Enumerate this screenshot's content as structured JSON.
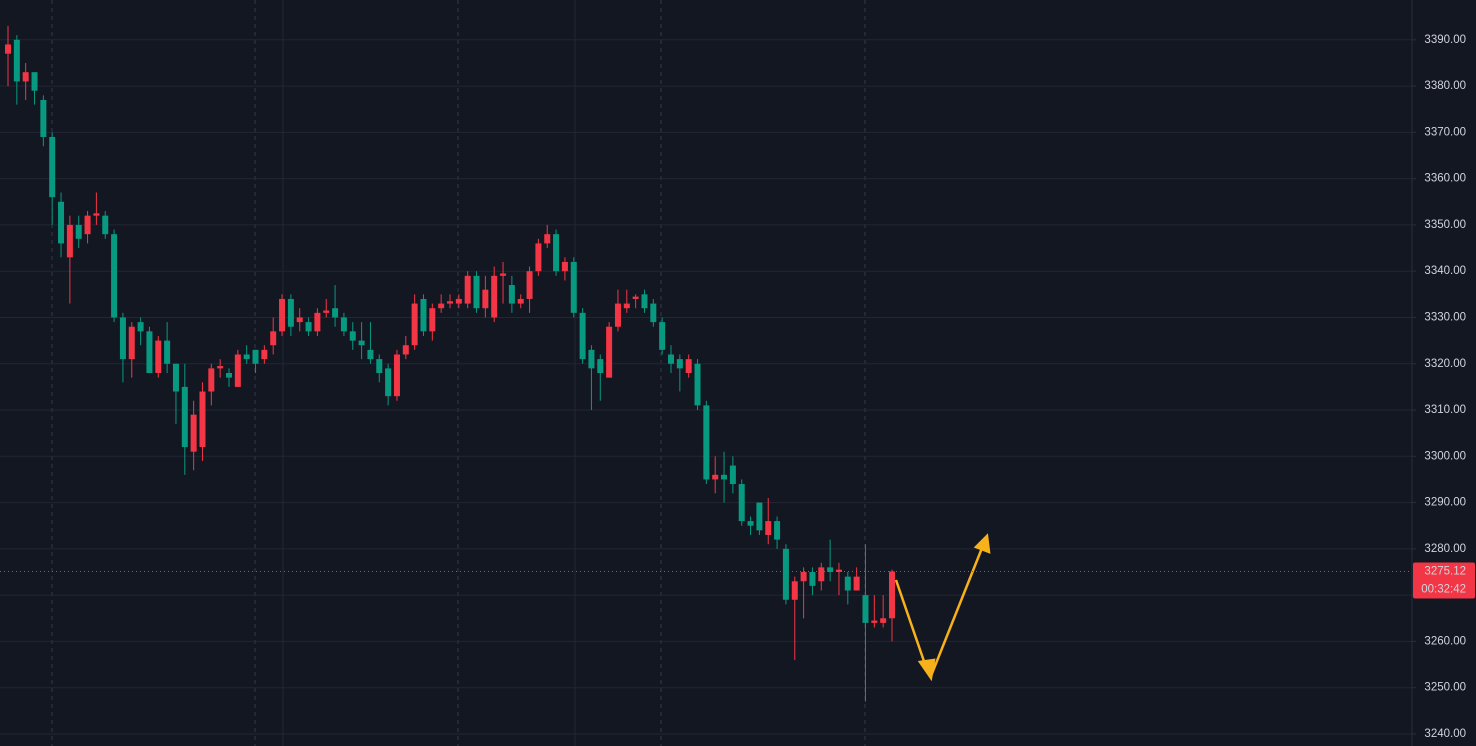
{
  "chart_data": {
    "type": "candlestick",
    "up_color": "#f23645",
    "down_color": "#089981",
    "ylim": [
      3237.4,
      3398.6
    ],
    "yticks": [
      {
        "value": 3240,
        "label": "3240.00"
      },
      {
        "value": 3250,
        "label": "3250.00"
      },
      {
        "value": 3260,
        "label": "3260.00"
      },
      {
        "value": 3270,
        "label": "3270.00"
      },
      {
        "value": 3280,
        "label": "3280.00"
      },
      {
        "value": 3290,
        "label": "3290.00"
      },
      {
        "value": 3300,
        "label": "3300.00"
      },
      {
        "value": 3310,
        "label": "3310.00"
      },
      {
        "value": 3320,
        "label": "3320.00"
      },
      {
        "value": 3330,
        "label": "3330.00"
      },
      {
        "value": 3340,
        "label": "3340.00"
      },
      {
        "value": 3350,
        "label": "3350.00"
      },
      {
        "value": 3360,
        "label": "3360.00"
      },
      {
        "value": 3370,
        "label": "3370.00"
      },
      {
        "value": 3380,
        "label": "3380.00"
      },
      {
        "value": 3390,
        "label": "3390.00"
      }
    ],
    "grid": true,
    "last_price": 3275.12,
    "countdown": "00:32:42",
    "open": [
      3387,
      3390,
      3381,
      3383,
      3377,
      3369,
      3355,
      3343,
      3350,
      3348,
      3352,
      3352,
      3348,
      3330,
      3321,
      3329,
      3327,
      3318,
      3325,
      3320,
      3315,
      3301,
      3302,
      3314,
      3319,
      3318,
      3315,
      3322,
      3323,
      3321,
      3324,
      3327,
      3334,
      3329,
      3329,
      3327,
      3331,
      3332,
      3330,
      3327,
      3325,
      3323,
      3321,
      3319,
      3313,
      3322,
      3324,
      3334,
      3327,
      3332,
      3333,
      3333,
      3333,
      3339,
      3332,
      3330,
      3339,
      3337,
      3333,
      3334,
      3340,
      3346,
      3348,
      3340,
      3342,
      3331,
      3323,
      3321,
      3317,
      3328,
      3332,
      3334,
      3335,
      3333,
      3329,
      3322,
      3321,
      3318,
      3320,
      3311,
      3295,
      3296,
      3298,
      3294,
      3286,
      3290,
      3283,
      3286,
      3280,
      3269,
      3273,
      3275,
      3273,
      3276,
      3275,
      3274,
      3271,
      3270,
      3264,
      3264,
      3265
    ],
    "high": [
      3393,
      3391,
      3385,
      3383,
      3378,
      3370,
      3357,
      3352,
      3352,
      3353,
      3357,
      3353,
      3349,
      3331,
      3329,
      3330,
      3328,
      3326,
      3329,
      3320,
      3320,
      3312,
      3316,
      3320,
      3321,
      3319,
      3323,
      3324,
      3323,
      3324,
      3330,
      3335,
      3335,
      3332,
      3330,
      3332,
      3334,
      3337,
      3331,
      3329,
      3329,
      3329,
      3322,
      3320,
      3323,
      3326,
      3335,
      3335,
      3333,
      3335,
      3335,
      3335,
      3340,
      3340,
      3339,
      3341,
      3342,
      3339,
      3335,
      3341,
      3347,
      3350,
      3349,
      3343,
      3343,
      3332,
      3324,
      3322,
      3329,
      3336,
      3336,
      3335,
      3336,
      3334,
      3330,
      3324,
      3322,
      3322,
      3321,
      3312,
      3300,
      3301,
      3300,
      3295,
      3287,
      3290,
      3291,
      3287,
      3281,
      3274,
      3276,
      3276,
      3277,
      3282,
      3277,
      3275,
      3276,
      3281,
      3270,
      3270,
      3275.5
    ],
    "low": [
      3380,
      3376,
      3377,
      3376,
      3367,
      3350,
      3343,
      3333,
      3345,
      3346,
      3350,
      3347,
      3329,
      3316,
      3317,
      3324,
      3318,
      3317,
      3318,
      3307,
      3296,
      3297,
      3299,
      3311,
      3317,
      3315,
      3315,
      3320,
      3318,
      3320,
      3322,
      3326,
      3326,
      3327,
      3326,
      3326,
      3330,
      3328,
      3326,
      3323,
      3321,
      3320,
      3316,
      3311,
      3312,
      3321,
      3323,
      3326,
      3325,
      3331,
      3332,
      3332,
      3332,
      3331,
      3330,
      3329,
      3333,
      3331,
      3332,
      3331,
      3339,
      3345,
      3339,
      3338,
      3330,
      3320,
      3310,
      3312,
      3317,
      3327,
      3331,
      3332,
      3331,
      3328,
      3322,
      3318,
      3314,
      3317,
      3310,
      3294,
      3292,
      3290,
      3292,
      3285,
      3283,
      3283,
      3281,
      3280,
      3268,
      3256,
      3265,
      3270,
      3271,
      3273,
      3270,
      3268,
      3271,
      3247,
      3263,
      3263,
      3260
    ],
    "close": [
      3389,
      3381,
      3383,
      3379,
      3369,
      3356,
      3346,
      3350,
      3347,
      3352,
      3352.5,
      3348,
      3330,
      3321,
      3328,
      3327,
      3318,
      3325,
      3320,
      3314,
      3302,
      3309,
      3314,
      3319,
      3319.5,
      3317,
      3322,
      3321,
      3320,
      3323,
      3327,
      3334,
      3328,
      3330,
      3327,
      3331,
      3331.5,
      3330,
      3327,
      3325,
      3324,
      3321,
      3318,
      3313,
      3322,
      3324,
      3333,
      3327,
      3332,
      3333,
      3333.5,
      3334,
      3339,
      3332,
      3336,
      3339,
      3339.5,
      3333,
      3334,
      3340,
      3346,
      3348,
      3340,
      3342,
      3331,
      3321,
      3319,
      3318,
      3328,
      3333,
      3333,
      3334.5,
      3332,
      3329,
      3323,
      3320,
      3319,
      3321,
      3311,
      3295,
      3296,
      3295,
      3294,
      3286,
      3285,
      3284,
      3286,
      3282,
      3269,
      3273,
      3275,
      3272,
      3276,
      3275,
      3275.5,
      3271,
      3274,
      3264,
      3264.5,
      3265,
      3275.12
    ]
  }
}
